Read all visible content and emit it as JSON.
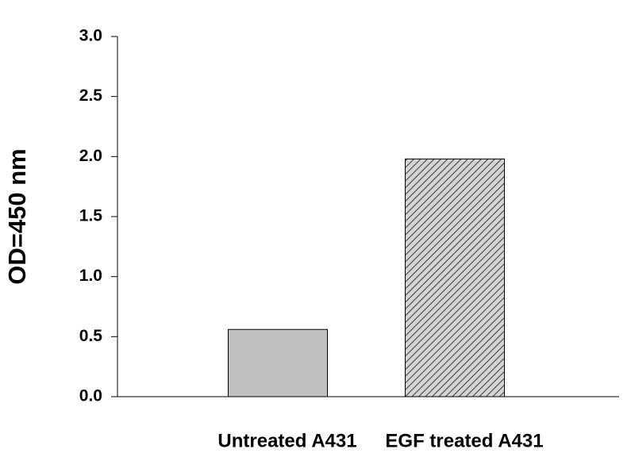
{
  "chart_data": {
    "type": "bar",
    "y_label": "OD=450 nm",
    "categories": [
      "Untreated A431",
      "EGF treated A431"
    ],
    "values": [
      0.56,
      1.98
    ],
    "colors": [
      "#c0c0c0",
      "#b8b8b8"
    ],
    "hatch": [
      false,
      true
    ],
    "ylim": [
      0,
      3
    ],
    "yticks": [
      {
        "value": 0,
        "label": "0.0"
      },
      0.5,
      {
        "value": 1,
        "label": "1.0"
      },
      1.5,
      {
        "value": 2,
        "label": "2.0"
      },
      2.5,
      {
        "value": 3,
        "label": "3.0"
      }
    ],
    "grid": false
  }
}
